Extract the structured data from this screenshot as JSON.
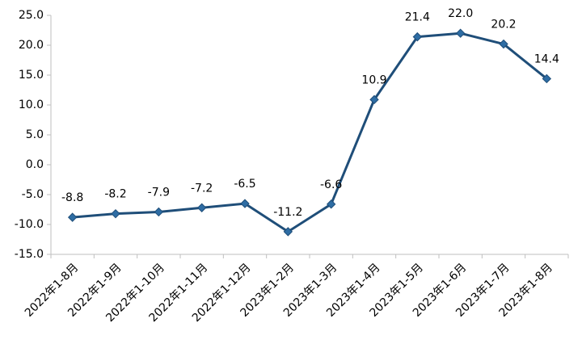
{
  "chart_data": {
    "type": "line",
    "title": "",
    "xlabel": "",
    "ylabel": "",
    "ylim": [
      -15.0,
      25.0
    ],
    "ytick_labels": [
      "25.0",
      "20.0",
      "15.0",
      "10.0",
      "5.0",
      "0.0",
      "-5.0",
      "-10.0",
      "-15.0"
    ],
    "categories": [
      "2022年1-8月",
      "2022年1-9月",
      "2022年1-10月",
      "2022年1-11月",
      "2022年1-12月",
      "2023年1-2月",
      "2023年1-3月",
      "2023年1-4月",
      "2023年1-5月",
      "2023年1-6月",
      "2023年1-7月",
      "2023年1-8月"
    ],
    "series": [
      {
        "values": [
          -8.8,
          -8.2,
          -7.9,
          -7.2,
          -6.5,
          -11.2,
          -6.6,
          10.9,
          21.4,
          22.0,
          20.2,
          14.4
        ],
        "value_labels": [
          "-8.8",
          "-8.2",
          "-7.9",
          "-7.2",
          "-6.5",
          "-11.2",
          "-6.6",
          "10.9",
          "21.4",
          "22.0",
          "20.2",
          "14.4"
        ],
        "color": "#1f4e79",
        "marker_color": "#2e6da4"
      }
    ],
    "grid": false,
    "legend": "none"
  }
}
